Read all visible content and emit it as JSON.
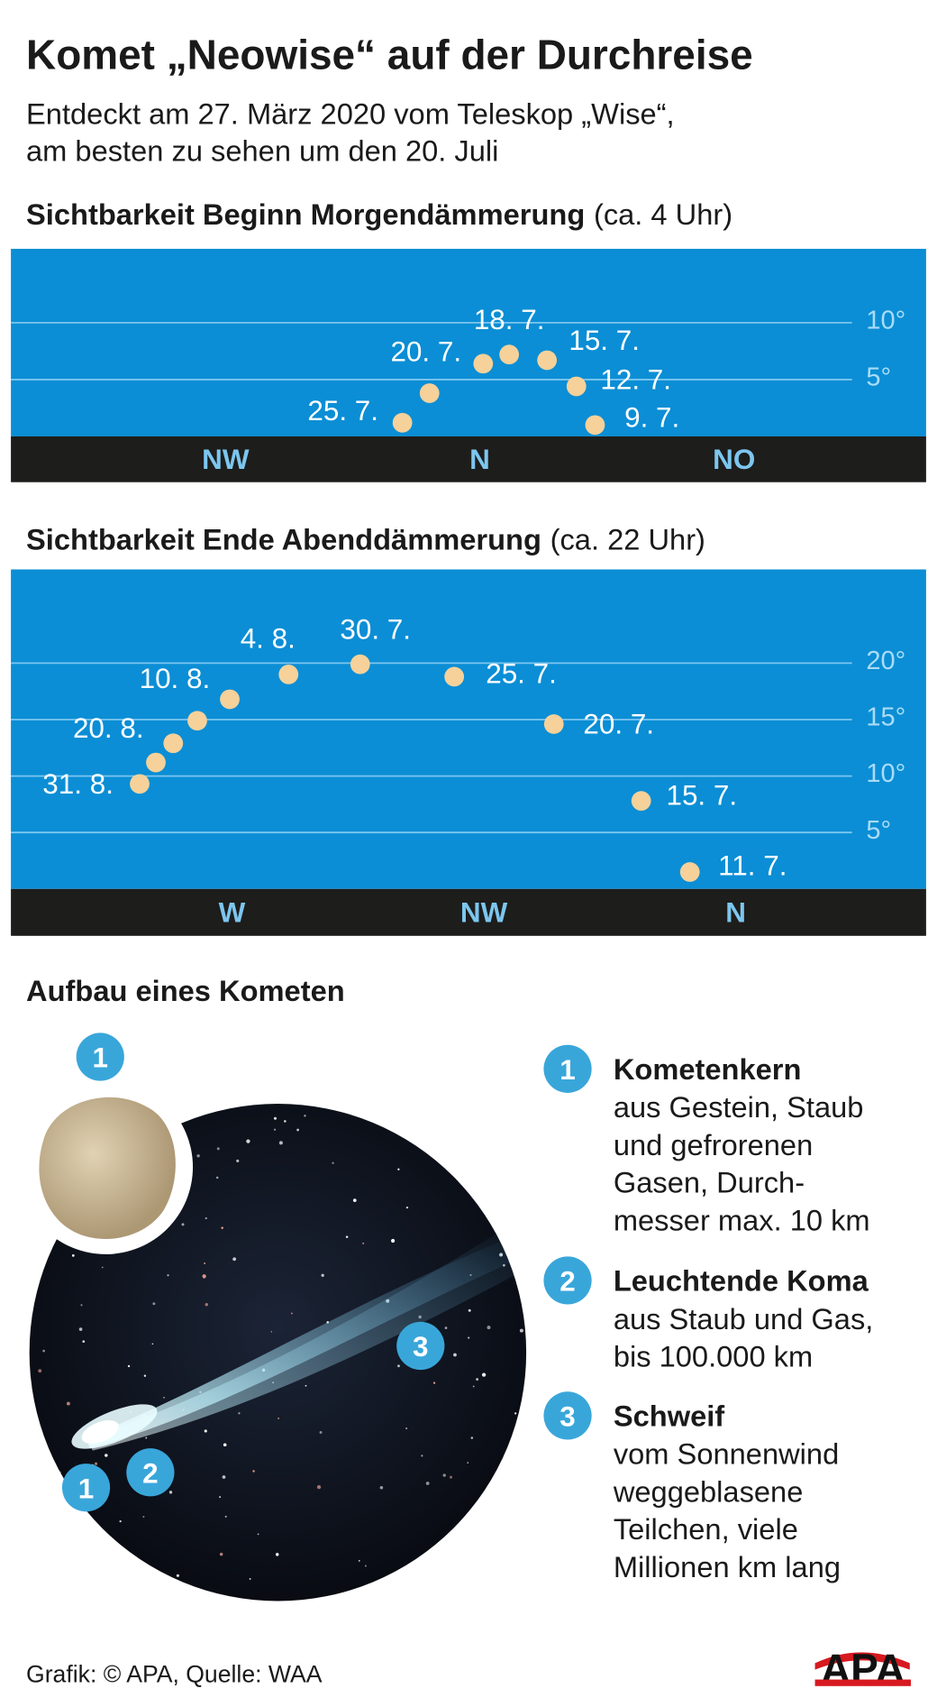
{
  "header": {
    "title": "Komet „Neowise“ auf der Durchreise",
    "subtitle_lines": [
      "Entdeckt am 27. März 2020 vom Teleskop „Wise“,",
      "am besten zu sehen um den 20. Juli"
    ]
  },
  "chart_data": [
    {
      "type": "scatter",
      "title": "Sichtbarkeit Beginn Morgendämmerung",
      "title_note": "(ca. 4 Uhr)",
      "x": [
        346.3,
        351.1,
        360.6,
        365.2,
        371.9,
        377.1,
        380.4
      ],
      "values": [
        1.2,
        3.8,
        6.4,
        7.2,
        6.7,
        4.4,
        1.0
      ],
      "point_labels": [
        "25. 7.",
        null,
        "20. 7.",
        "18. 7.",
        "15. 7.",
        "12. 7.",
        "9. 7."
      ],
      "color": "#f6d19a",
      "xlim": [
        277,
        439
      ],
      "xticks": [
        {
          "value": 315,
          "label": "NW"
        },
        {
          "value": 360,
          "label": "N"
        },
        {
          "value": 405,
          "label": "NO"
        }
      ],
      "ylim": [
        0,
        16.5
      ],
      "yticks": [
        {
          "value": 5,
          "label": "5°"
        },
        {
          "value": 10,
          "label": "10°"
        }
      ],
      "grid": true
    },
    {
      "type": "scatter",
      "title": "Sichtbarkeit Ende Abenddämmerung",
      "title_note": "(ca. 22 Uhr)",
      "x": [
        351.8,
        343.1,
        327.5,
        309.7,
        292.9,
        280.1,
        269.6,
        263.8,
        259.5,
        256.4,
        253.5
      ],
      "values": [
        1.5,
        7.8,
        14.6,
        18.8,
        19.9,
        19.0,
        16.8,
        14.9,
        12.9,
        11.2,
        9.3
      ],
      "point_labels": [
        "11. 7.",
        "15. 7.",
        "20. 7.",
        "25. 7.",
        "30. 7.",
        "4. 8.",
        "10. 8.",
        null,
        "20. 8.",
        null,
        "31. 8."
      ],
      "color": "#f6d19a",
      "xlim": [
        230.5,
        394
      ],
      "xticks": [
        {
          "value": 270,
          "label": "W"
        },
        {
          "value": 315,
          "label": "NW"
        },
        {
          "value": 360,
          "label": "N"
        }
      ],
      "ylim": [
        0,
        28.3
      ],
      "yticks": [
        {
          "value": 5,
          "label": "5°"
        },
        {
          "value": 10,
          "label": "10°"
        },
        {
          "value": 15,
          "label": "15°"
        },
        {
          "value": 20,
          "label": "20°"
        }
      ],
      "grid": true
    }
  ],
  "structure": {
    "title": "Aufbau eines Kometen",
    "items": [
      {
        "number": 1,
        "title": "Kometenkern",
        "lines": [
          "aus Gestein, Staub",
          "und gefrorenen",
          "Gasen, Durch-",
          "messer max. 10 km"
        ]
      },
      {
        "number": 2,
        "title": "Leuchtende Koma",
        "lines": [
          "aus Staub und Gas,",
          "bis 100.000 km"
        ]
      },
      {
        "number": 3,
        "title": "Schweif",
        "lines": [
          "vom Sonnenwind",
          "weggeblasene",
          "Teilchen, viele",
          "Millionen km lang"
        ]
      }
    ]
  },
  "footer": {
    "credit": "Grafik: © APA, Quelle: WAA",
    "logo": "APA"
  }
}
